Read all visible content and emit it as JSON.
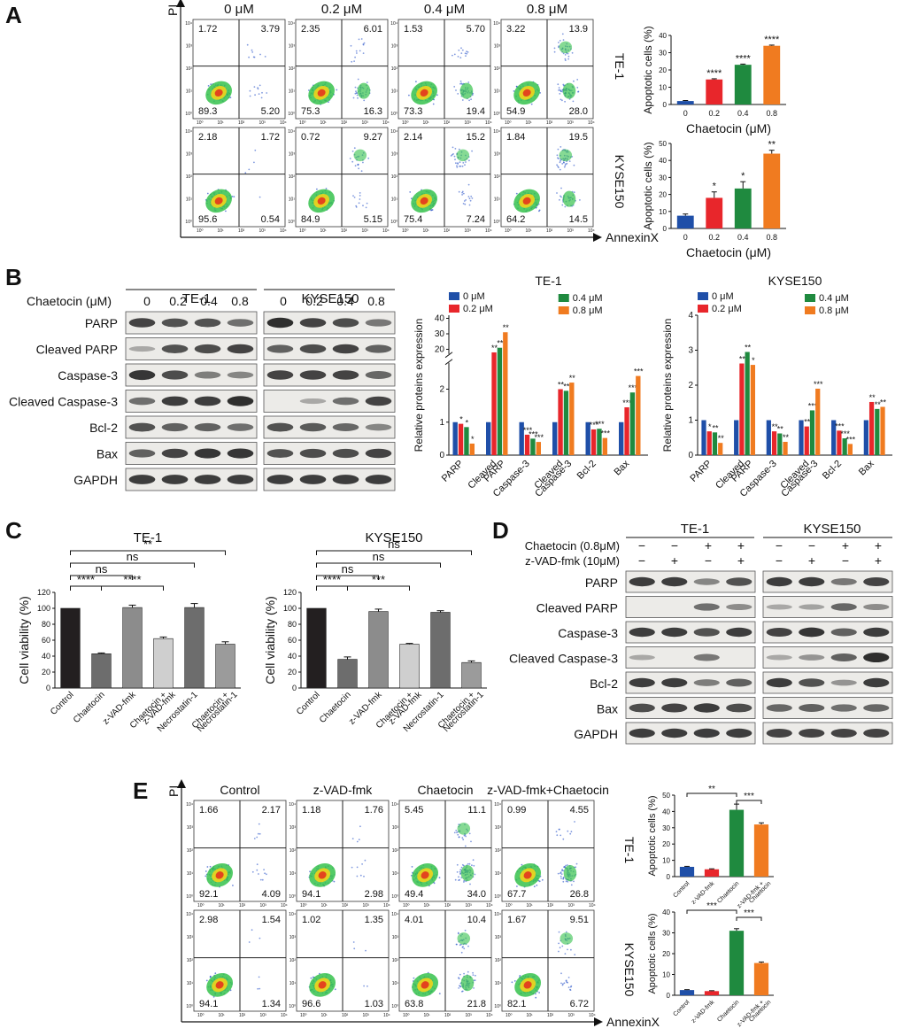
{
  "panels": {
    "A": {
      "letter": "A",
      "conditions": [
        "0 μM",
        "0.2 μM",
        "0.4 μM",
        "0.8 μM"
      ],
      "y_axis_label": "PI",
      "x_axis_label": "AnnexinX",
      "tick_labels": [
        "10⁰",
        "10¹",
        "10²",
        "10³",
        "10⁴"
      ],
      "rows": [
        {
          "cell_line": "TE-1",
          "quadrants": [
            {
              "ul": "1.72",
              "ur": "3.79",
              "ll": "89.3",
              "lr": "5.20"
            },
            {
              "ul": "2.35",
              "ur": "6.01",
              "ll": "75.3",
              "lr": "16.3"
            },
            {
              "ul": "1.53",
              "ur": "5.70",
              "ll": "73.3",
              "lr": "19.4"
            },
            {
              "ul": "3.22",
              "ur": "13.9",
              "ll": "54.9",
              "lr": "28.0"
            }
          ]
        },
        {
          "cell_line": "KYSE150",
          "quadrants": [
            {
              "ul": "2.18",
              "ur": "1.72",
              "ll": "95.6",
              "lr": "0.54"
            },
            {
              "ul": "0.72",
              "ur": "9.27",
              "ll": "84.9",
              "lr": "5.15"
            },
            {
              "ul": "2.14",
              "ur": "15.2",
              "ll": "75.4",
              "lr": "7.24"
            },
            {
              "ul": "1.84",
              "ur": "19.5",
              "ll": "64.2",
              "lr": "14.5"
            }
          ]
        }
      ]
    },
    "B": {
      "letter": "B",
      "treatment_label": "Chaetocin (μM)",
      "cell_lines": [
        "TE-1",
        "KYSE150"
      ],
      "doses": [
        "0",
        "0.2",
        "0.4",
        "0.8"
      ],
      "proteins": [
        "PARP",
        "Cleaved PARP",
        "Caspase-3",
        "Cleaved Caspase-3",
        "Bcl-2",
        "Bax",
        "GAPDH"
      ]
    },
    "C": {
      "letter": "C",
      "sig_labels": [
        "****",
        "ns",
        "****",
        "ns",
        "**",
        "****",
        "ns",
        "***",
        "ns",
        "ns"
      ]
    },
    "D": {
      "letter": "D",
      "cell_lines": [
        "TE-1",
        "KYSE150"
      ],
      "row1_label": "Chaetocin (0.8μM)",
      "row2_label": "z-VAD-fmk (10μM)",
      "row1_signs": [
        "−",
        "−",
        "+",
        "+",
        "−",
        "−",
        "+",
        "+"
      ],
      "row2_signs": [
        "−",
        "+",
        "−",
        "+",
        "−",
        "+",
        "−",
        "+"
      ],
      "proteins": [
        "PARP",
        "Cleaved PARP",
        "Caspase-3",
        "Cleaved Caspase-3",
        "Bcl-2",
        "Bax",
        "GAPDH"
      ]
    },
    "E": {
      "letter": "E",
      "conditions": [
        "Control",
        "z-VAD-fmk",
        "Chaetocin",
        "z-VAD-fmk+Chaetocin"
      ],
      "y_axis_label": "PI",
      "x_axis_label": "AnnexinX",
      "rows": [
        {
          "cell_line": "TE-1",
          "quadrants": [
            {
              "ul": "1.66",
              "ur": "2.17",
              "ll": "92.1",
              "lr": "4.09"
            },
            {
              "ul": "1.18",
              "ur": "1.76",
              "ll": "94.1",
              "lr": "2.98"
            },
            {
              "ul": "5.45",
              "ur": "11.1",
              "ll": "49.4",
              "lr": "34.0"
            },
            {
              "ul": "0.99",
              "ur": "4.55",
              "ll": "67.7",
              "lr": "26.8"
            }
          ]
        },
        {
          "cell_line": "KYSE150",
          "quadrants": [
            {
              "ul": "2.98",
              "ur": "1.54",
              "ll": "94.1",
              "lr": "1.34"
            },
            {
              "ul": "1.02",
              "ur": "1.35",
              "ll": "96.6",
              "lr": "1.03"
            },
            {
              "ul": "4.01",
              "ur": "10.4",
              "ll": "63.8",
              "lr": "21.8"
            },
            {
              "ul": "1.67",
              "ur": "9.51",
              "ll": "82.1",
              "lr": "6.72"
            }
          ]
        }
      ]
    }
  },
  "colors": {
    "blue": "#1f4fa8",
    "red": "#e8262b",
    "green": "#1f8a3f",
    "orange": "#f07b20",
    "black_bar": "#231f20",
    "gray_dark": "#6d6d6d",
    "gray_mid": "#8c8c8c",
    "gray_light": "#cfcfcf",
    "gray_mid2": "#9b9b9b",
    "blot_bg": "#ecebe8",
    "band": "#1c1c1c"
  },
  "chart_data": [
    {
      "id": "A_TE1",
      "type": "bar",
      "cell_line": "TE-1",
      "categories": [
        "0",
        "0.2",
        "0.4",
        "0.8"
      ],
      "values": [
        2,
        14.5,
        23,
        34
      ],
      "errors": [
        0.3,
        0.4,
        0.4,
        0.4
      ],
      "significance": [
        "",
        "****",
        "****",
        "****"
      ],
      "ylabel": "Apoptotic cells (%)",
      "xlabel": "Chaetocin (μM)",
      "ylim": [
        0,
        40
      ],
      "yticks": [
        0,
        10,
        20,
        30,
        40
      ],
      "colors": [
        "#1f4fa8",
        "#e8262b",
        "#1f8a3f",
        "#f07b20"
      ]
    },
    {
      "id": "A_KYSE150",
      "type": "bar",
      "cell_line": "KYSE150",
      "categories": [
        "0",
        "0.2",
        "0.4",
        "0.8"
      ],
      "values": [
        7.5,
        18,
        23.5,
        44
      ],
      "errors": [
        1,
        3.5,
        4,
        2
      ],
      "significance": [
        "",
        "*",
        "*",
        "**"
      ],
      "ylabel": "Apoptotic cells (%)",
      "xlabel": "Chaetocin  (μM)",
      "ylim": [
        0,
        50
      ],
      "yticks": [
        0,
        10,
        20,
        30,
        40,
        50
      ],
      "colors": [
        "#1f4fa8",
        "#e8262b",
        "#1f8a3f",
        "#f07b20"
      ]
    },
    {
      "id": "B_TE1",
      "type": "bar",
      "title": "TE-1",
      "ylabel": "Relative proteins expression",
      "categories": [
        "PARP",
        "Cleaved PARP",
        "Caspase-3",
        "Cleaved Caspase-3",
        "Bcl-2",
        "Bax"
      ],
      "tick_labels": [
        [
          "PARP"
        ],
        [
          "Cleaved",
          "PARP"
        ],
        [
          "Caspase-3"
        ],
        [
          "Cleaved",
          "Caspase-3"
        ],
        [
          "Bcl-2"
        ],
        [
          "Bax"
        ]
      ],
      "yticks_lower": [
        0,
        1,
        2
      ],
      "yticks_upper": [
        20,
        30,
        40
      ],
      "axis_break": [
        2.8,
        17
      ],
      "series": [
        {
          "name": "0 μM",
          "color": "#1f4fa8",
          "values": [
            1,
            1,
            1,
            1,
            1,
            1
          ],
          "sig": [
            "",
            "",
            "",
            "",
            "",
            ""
          ]
        },
        {
          "name": "0.2 μM",
          "color": "#e8262b",
          "values": [
            0.95,
            18,
            0.62,
            2.0,
            0.78,
            1.45
          ],
          "sig": [
            "*",
            "**",
            "***",
            "**",
            "***",
            "***"
          ]
        },
        {
          "name": "0.4 μM",
          "color": "#1f8a3f",
          "values": [
            0.85,
            21,
            0.5,
            1.95,
            0.8,
            1.9
          ],
          "sig": [
            "*",
            "**",
            "***",
            "**",
            "***",
            "***"
          ]
        },
        {
          "name": "0.8 μM",
          "color": "#f07b20",
          "values": [
            0.35,
            31,
            0.4,
            2.2,
            0.52,
            2.4
          ],
          "sig": [
            "*",
            "**",
            "***",
            "**",
            "***",
            "***"
          ]
        }
      ]
    },
    {
      "id": "B_KYSE150",
      "type": "bar",
      "title": "KYSE150",
      "ylabel": "Relative proteins expression",
      "categories": [
        "PARP",
        "Cleaved PARP",
        "Caspase-3",
        "Cleaved Caspase-3",
        "Bcl-2",
        "Bax"
      ],
      "tick_labels": [
        [
          "PARP"
        ],
        [
          "Cleaved",
          "PARP"
        ],
        [
          "Caspase-3"
        ],
        [
          "Cleaved",
          "Caspase-3"
        ],
        [
          "Bcl-2"
        ],
        [
          "Bax"
        ]
      ],
      "yticks": [
        0,
        1,
        2,
        3,
        4
      ],
      "ylim": [
        0,
        4
      ],
      "series": [
        {
          "name": "0 μM",
          "color": "#1f4fa8",
          "values": [
            1,
            1,
            1,
            1,
            1,
            1
          ],
          "sig": [
            "",
            "",
            "",
            "",
            "",
            ""
          ]
        },
        {
          "name": "0.2 μM",
          "color": "#e8262b",
          "values": [
            0.68,
            2.62,
            0.68,
            0.82,
            0.7,
            1.52
          ],
          "sig": [
            "*",
            "**",
            "**",
            "**",
            "***",
            "**"
          ]
        },
        {
          "name": "0.4 μM",
          "color": "#1f8a3f",
          "values": [
            0.65,
            2.95,
            0.62,
            1.28,
            0.48,
            1.32
          ],
          "sig": [
            "**",
            "**",
            "**",
            "***",
            "***",
            "**"
          ]
        },
        {
          "name": "0.8 μM",
          "color": "#f07b20",
          "values": [
            0.35,
            2.58,
            0.38,
            1.9,
            0.32,
            1.38
          ],
          "sig": [
            "**",
            "*",
            "**",
            "***",
            "***",
            "**"
          ]
        }
      ]
    },
    {
      "id": "C_TE1",
      "type": "bar",
      "title": "TE-1",
      "ylabel": "Cell viability (%)",
      "ylim": [
        0,
        120
      ],
      "yticks": [
        0,
        20,
        40,
        60,
        80,
        100,
        120
      ],
      "categories": [
        "Control",
        "Chaetocin",
        "z-VAD-fmk",
        "Chaetocin + z-VAD-fmk",
        "Necrostatin-1",
        "Chaetocin + Necrostatin-1"
      ],
      "tick_labels": [
        [
          "Control"
        ],
        [
          "Chaetocin"
        ],
        [
          "z-VAD-fmk"
        ],
        [
          "Chaetocin +",
          "z-VAD-fmk"
        ],
        [
          "Necrostatin-1"
        ],
        [
          "Chaetocin +",
          "Necrostatin-1"
        ]
      ],
      "values": [
        100,
        43,
        101,
        62,
        101,
        55
      ],
      "errors": [
        0,
        1,
        3,
        2,
        5,
        3
      ],
      "colors": [
        "#231f20",
        "#6d6d6d",
        "#8c8c8c",
        "#cfcfcf",
        "#6d6d6d",
        "#9b9b9b"
      ]
    },
    {
      "id": "C_KYSE150",
      "type": "bar",
      "title": "KYSE150",
      "ylabel": "Cell viability (%)",
      "ylim": [
        0,
        120
      ],
      "yticks": [
        0,
        20,
        40,
        60,
        80,
        100,
        120
      ],
      "categories": [
        "Control",
        "Chaetocin",
        "z-VAD-fmk",
        "Chaetocin + z-VAD-fmk",
        "Necrostatin-1",
        "Chaetocin + Necrostatin-1"
      ],
      "tick_labels": [
        [
          "Control"
        ],
        [
          "Chaetocin"
        ],
        [
          "z-VAD-fmk"
        ],
        [
          "Chaetocin +",
          "z-VAD-fmk"
        ],
        [
          "Necrostatin-1"
        ],
        [
          "Chaetocin +",
          "Necrostatin-1"
        ]
      ],
      "values": [
        100,
        36,
        96,
        55,
        95,
        32
      ],
      "errors": [
        0,
        3,
        3,
        1,
        2,
        2
      ],
      "colors": [
        "#231f20",
        "#6d6d6d",
        "#8c8c8c",
        "#cfcfcf",
        "#6d6d6d",
        "#9b9b9b"
      ]
    },
    {
      "id": "E_TE1",
      "type": "bar",
      "cell_line": "TE-1",
      "ylabel": "Apoptotic cells (%)",
      "ylim": [
        0,
        50
      ],
      "yticks": [
        0,
        10,
        20,
        30,
        40,
        50
      ],
      "categories": [
        "Control",
        "z-VAD-fmk",
        "Chaetocin",
        "z-VAD-fmk + Chaetocin"
      ],
      "tick_labels": [
        [
          "Control"
        ],
        [
          "z-VAD-fmk"
        ],
        [
          "Chaetocin"
        ],
        [
          "z-VAD-fmk +",
          "Chaetocin"
        ]
      ],
      "values": [
        6,
        4.5,
        41,
        32
      ],
      "errors": [
        0.3,
        0.3,
        3.5,
        1
      ],
      "colors": [
        "#1f4fa8",
        "#e8262b",
        "#1f8a3f",
        "#f07b20"
      ],
      "brackets": [
        {
          "from": 0,
          "to": 2,
          "label": "**"
        },
        {
          "from": 2,
          "to": 3,
          "label": "***"
        }
      ]
    },
    {
      "id": "E_KYSE150",
      "type": "bar",
      "cell_line": "KYSE150",
      "ylabel": "Apoptotic cells (%)",
      "ylim": [
        0,
        40
      ],
      "yticks": [
        0,
        10,
        20,
        30,
        40
      ],
      "categories": [
        "Control",
        "z-VAD-fmk",
        "Chaetocin",
        "z-VAD-fmk + Chaetocin"
      ],
      "tick_labels": [
        [
          "Control"
        ],
        [
          "z-VAD-fmk"
        ],
        [
          "Chaetocin"
        ],
        [
          "z-VAD-fmk +",
          "Chaetocin"
        ]
      ],
      "values": [
        2.5,
        2,
        31,
        15.5
      ],
      "errors": [
        0.2,
        0.2,
        1,
        0.5
      ],
      "colors": [
        "#1f4fa8",
        "#e8262b",
        "#1f8a3f",
        "#f07b20"
      ],
      "brackets": [
        {
          "from": 0,
          "to": 2,
          "label": "***"
        },
        {
          "from": 2,
          "to": 3,
          "label": "***"
        }
      ]
    }
  ]
}
